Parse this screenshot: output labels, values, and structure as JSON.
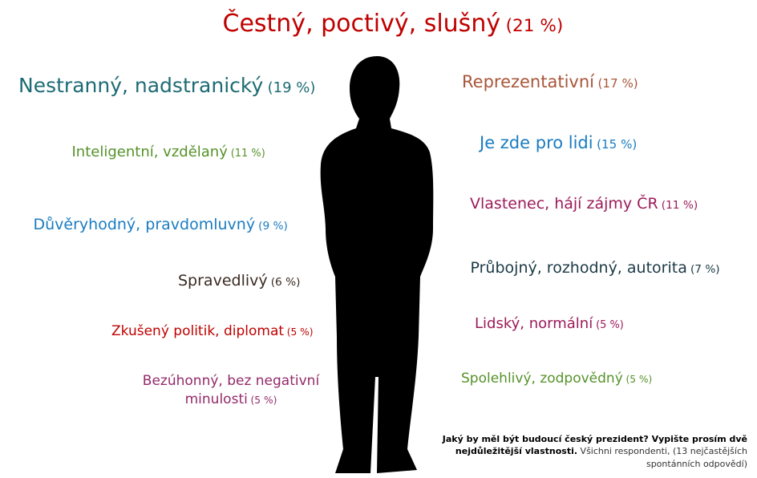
{
  "items": [
    {
      "label": "Čestný, poctivý, slušný",
      "share": "(21 %)",
      "color": "#c00000"
    },
    {
      "label": "Nestranný, nadstranický",
      "share": "(19 %)",
      "color": "#1d6b74"
    },
    {
      "label": "Reprezentativní",
      "share": "(17 %)",
      "color": "#a9563a"
    },
    {
      "label": "Inteligentní, vzdělaný",
      "share": "(11 %)",
      "color": "#55922a"
    },
    {
      "label": "Je zde pro lidi",
      "share": "(15 %)",
      "color": "#1a7cc0"
    },
    {
      "label": "Důvěryhodný, pravdomluvný",
      "share": "(9 %)",
      "color": "#1a7cc0"
    },
    {
      "label": "Vlastenec, hájí zájmy ČR",
      "share": "(11 %)",
      "color": "#9c1b5a"
    },
    {
      "label": "Spravedlivý",
      "share": "(6 %)",
      "color": "#3b2a22"
    },
    {
      "label": "Průbojný, rozhodný, autorita",
      "share": "(7 %)",
      "color": "#1b3946"
    },
    {
      "label": "Zkušený politik, diplomat",
      "share": "(5 %)",
      "color": "#c00000"
    },
    {
      "label": "Lidský, normální",
      "share": "(5 %)",
      "color": "#9c1b5a"
    },
    {
      "label": "Bezúhonný, bez negativní minulosti",
      "share": "(5 %)",
      "color": "#932a69"
    },
    {
      "label": "Spolehlivý, zodpovědný",
      "share": "(5 %)",
      "color": "#55922a"
    }
  ],
  "note": {
    "question": "Jaký by měl být budoucí český prezident? Vypište prosím dvě nejdůležitější vlastnosti.",
    "base": "Všichni respondenti, (13 nejčastějších spontánních odpovědí)"
  }
}
